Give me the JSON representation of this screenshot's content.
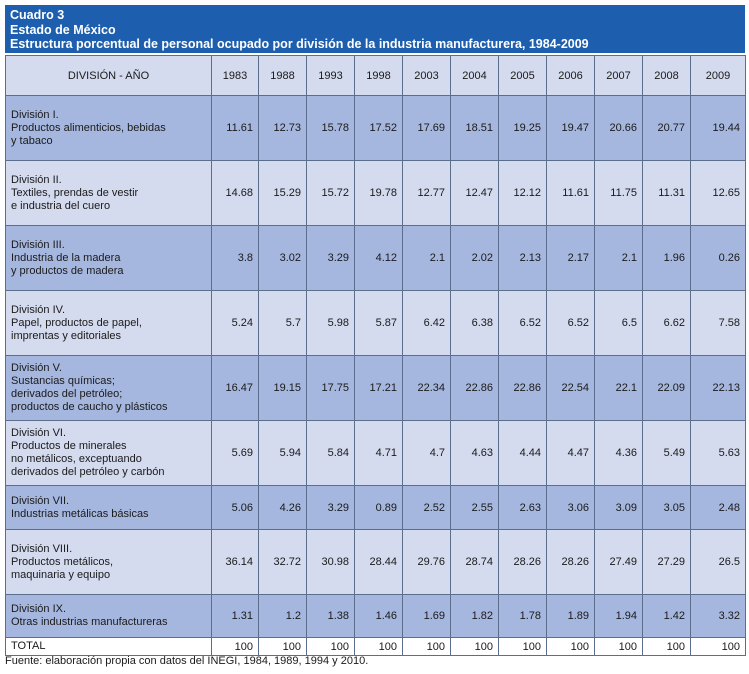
{
  "header": {
    "line1": "Cuadro 3",
    "line2": "Estado de México",
    "line3": "Estructura porcentual de personal ocupado por división de la industria manufacturera, 1984-2009"
  },
  "table": {
    "corner": "DIVISIÓN - AÑO",
    "years": [
      "1983",
      "1988",
      "1993",
      "1998",
      "2003",
      "2004",
      "2005",
      "2006",
      "2007",
      "2008",
      "2009"
    ],
    "rows": [
      {
        "lines": [
          "División I.",
          "Productos alimenticios, bebidas",
          "y tabaco"
        ],
        "values": [
          "11.61",
          "12.73",
          "15.78",
          "17.52",
          "17.69",
          "18.51",
          "19.25",
          "19.47",
          "20.66",
          "20.77",
          "19.44"
        ]
      },
      {
        "lines": [
          "División II.",
          "Textiles, prendas de vestir",
          "e industria del cuero"
        ],
        "values": [
          "14.68",
          "15.29",
          "15.72",
          "19.78",
          "12.77",
          "12.47",
          "12.12",
          "11.61",
          "11.75",
          "11.31",
          "12.65"
        ]
      },
      {
        "lines": [
          "División III.",
          "Industria de la madera",
          "y productos de madera"
        ],
        "values": [
          "3.8",
          "3.02",
          "3.29",
          "4.12",
          "2.1",
          "2.02",
          "2.13",
          "2.17",
          "2.1",
          "1.96",
          "0.26"
        ]
      },
      {
        "lines": [
          "División IV.",
          "Papel, productos de papel,",
          "imprentas y editoriales"
        ],
        "values": [
          "5.24",
          "5.7",
          "5.98",
          "5.87",
          "6.42",
          "6.38",
          "6.52",
          "6.52",
          "6.5",
          "6.62",
          "7.58"
        ]
      },
      {
        "lines": [
          "División V.",
          "Sustancias químicas;",
          "derivados del petróleo;",
          "productos de caucho y plásticos"
        ],
        "values": [
          "16.47",
          "19.15",
          "17.75",
          "17.21",
          "22.34",
          "22.86",
          "22.86",
          "22.54",
          "22.1",
          "22.09",
          "22.13"
        ]
      },
      {
        "lines": [
          "División VI.",
          "Productos de minerales",
          "no metálicos, exceptuando",
          "derivados del petróleo y carbón"
        ],
        "values": [
          "5.69",
          "5.94",
          "5.84",
          "4.71",
          "4.7",
          "4.63",
          "4.44",
          "4.47",
          "4.36",
          "5.49",
          "5.63"
        ]
      },
      {
        "lines": [
          "División VII.",
          "Industrias metálicas básicas"
        ],
        "values": [
          "5.06",
          "4.26",
          "3.29",
          "0.89",
          "2.52",
          "2.55",
          "2.63",
          "3.06",
          "3.09",
          "3.05",
          "2.48"
        ]
      },
      {
        "lines": [
          "División VIII.",
          "Productos metálicos,",
          "maquinaria y equipo"
        ],
        "values": [
          "36.14",
          "32.72",
          "30.98",
          "28.44",
          "29.76",
          "28.74",
          "28.26",
          "28.26",
          "27.49",
          "27.29",
          "26.5"
        ]
      },
      {
        "lines": [
          "División IX.",
          "Otras industrias manufactureras"
        ],
        "values": [
          "1.31",
          "1.2",
          "1.38",
          "1.46",
          "1.69",
          "1.82",
          "1.78",
          "1.89",
          "1.94",
          "1.42",
          "3.32"
        ]
      }
    ],
    "total": {
      "label": "TOTAL",
      "values": [
        "100",
        "100",
        "100",
        "100",
        "100",
        "100",
        "100",
        "100",
        "100",
        "100",
        "100"
      ]
    }
  },
  "footer": "Fuente: elaboración propia con datos del INEGI, 1984, 1989, 1994 y 2010."
}
